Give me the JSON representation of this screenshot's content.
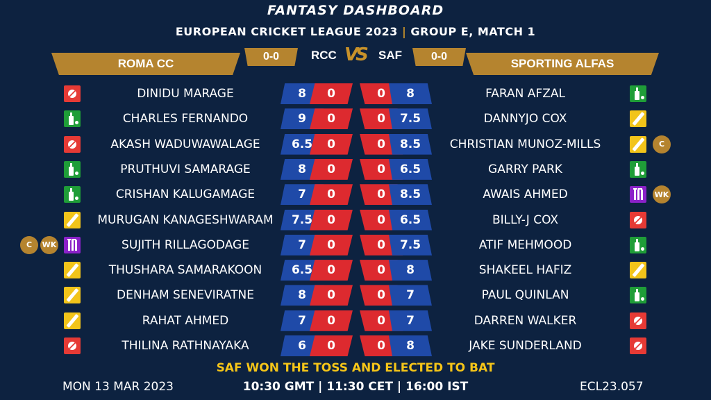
{
  "title": "FANTASY DASHBOARD",
  "subtitle": {
    "league": "EUROPEAN CRICKET LEAGUE 2023",
    "separator": "|",
    "match": "GROUP E, MATCH 1"
  },
  "team_left": {
    "name": "ROMA CC",
    "code": "RCC",
    "score": "0-0"
  },
  "team_right": {
    "name": "SPORTING ALFAS",
    "code": "SAF",
    "score": "0-0"
  },
  "vs_label": "VS",
  "colors": {
    "background": "#0d2240",
    "gold": "#b5842f",
    "blue": "#1f4aa8",
    "red": "#dd2a2f",
    "toss": "#f5c518"
  },
  "left_players": [
    {
      "name": "DINIDU MARAGE",
      "role": "bowl-icon",
      "credit": "8",
      "points": "0",
      "badges": []
    },
    {
      "name": "CHARLES FERNANDO",
      "role": "bat-icon",
      "credit": "9",
      "points": "0",
      "badges": []
    },
    {
      "name": "AKASH WADUWAWALAGE",
      "role": "bowl-icon",
      "credit": "6.5",
      "points": "0",
      "badges": []
    },
    {
      "name": "PRUTHUVI SAMARAGE",
      "role": "bat-icon",
      "credit": "8",
      "points": "0",
      "badges": []
    },
    {
      "name": "CRISHAN KALUGAMAGE",
      "role": "bat-icon",
      "credit": "7",
      "points": "0",
      "badges": []
    },
    {
      "name": "MURUGAN KANAGESHWARAM",
      "role": "allrounder-icon",
      "credit": "7.5",
      "points": "0",
      "badges": []
    },
    {
      "name": "SUJITH RILLAGODAGE",
      "role": "wicketkeeper-icon",
      "credit": "7",
      "points": "0",
      "badges": [
        "C",
        "WK"
      ]
    },
    {
      "name": "THUSHARA SAMARAKOON",
      "role": "allrounder-icon",
      "credit": "6.5",
      "points": "0",
      "badges": []
    },
    {
      "name": "DENHAM SENEVIRATNE",
      "role": "allrounder-icon",
      "credit": "8",
      "points": "0",
      "badges": []
    },
    {
      "name": "RAHAT AHMED",
      "role": "allrounder-icon",
      "credit": "7",
      "points": "0",
      "badges": []
    },
    {
      "name": "THILINA RATHNAYAKA",
      "role": "bowl-icon",
      "credit": "6",
      "points": "0",
      "badges": []
    }
  ],
  "right_players": [
    {
      "name": "FARAN AFZAL",
      "role": "bat-icon",
      "credit": "8",
      "points": "0",
      "badges": []
    },
    {
      "name": "DANNYJO COX",
      "role": "allrounder-icon",
      "credit": "7.5",
      "points": "0",
      "badges": []
    },
    {
      "name": "CHRISTIAN MUNOZ-MILLS",
      "role": "allrounder-icon",
      "credit": "8.5",
      "points": "0",
      "badges": [
        "C"
      ]
    },
    {
      "name": "GARRY PARK",
      "role": "bat-icon",
      "credit": "6.5",
      "points": "0",
      "badges": []
    },
    {
      "name": "AWAIS AHMED",
      "role": "wicketkeeper-icon",
      "credit": "8.5",
      "points": "0",
      "badges": [
        "WK"
      ]
    },
    {
      "name": "BILLY-J COX",
      "role": "bowl-icon",
      "credit": "6.5",
      "points": "0",
      "badges": []
    },
    {
      "name": "ATIF MEHMOOD",
      "role": "bat-icon",
      "credit": "7.5",
      "points": "0",
      "badges": []
    },
    {
      "name": "SHAKEEL HAFIZ",
      "role": "allrounder-icon",
      "credit": "8",
      "points": "0",
      "badges": []
    },
    {
      "name": "PAUL QUINLAN",
      "role": "bat-icon",
      "credit": "7",
      "points": "0",
      "badges": []
    },
    {
      "name": "DARREN WALKER",
      "role": "bowl-icon",
      "credit": "7",
      "points": "0",
      "badges": []
    },
    {
      "name": "JAKE SUNDERLAND",
      "role": "bowl-icon",
      "credit": "8",
      "points": "0",
      "badges": []
    }
  ],
  "toss": "SAF WON THE TOSS AND ELECTED TO BAT",
  "footer": {
    "date": "MON 13 MAR 2023",
    "time": "10:30 GMT | 11:30 CET | 16:00 IST",
    "match_id": "ECL23.057"
  }
}
